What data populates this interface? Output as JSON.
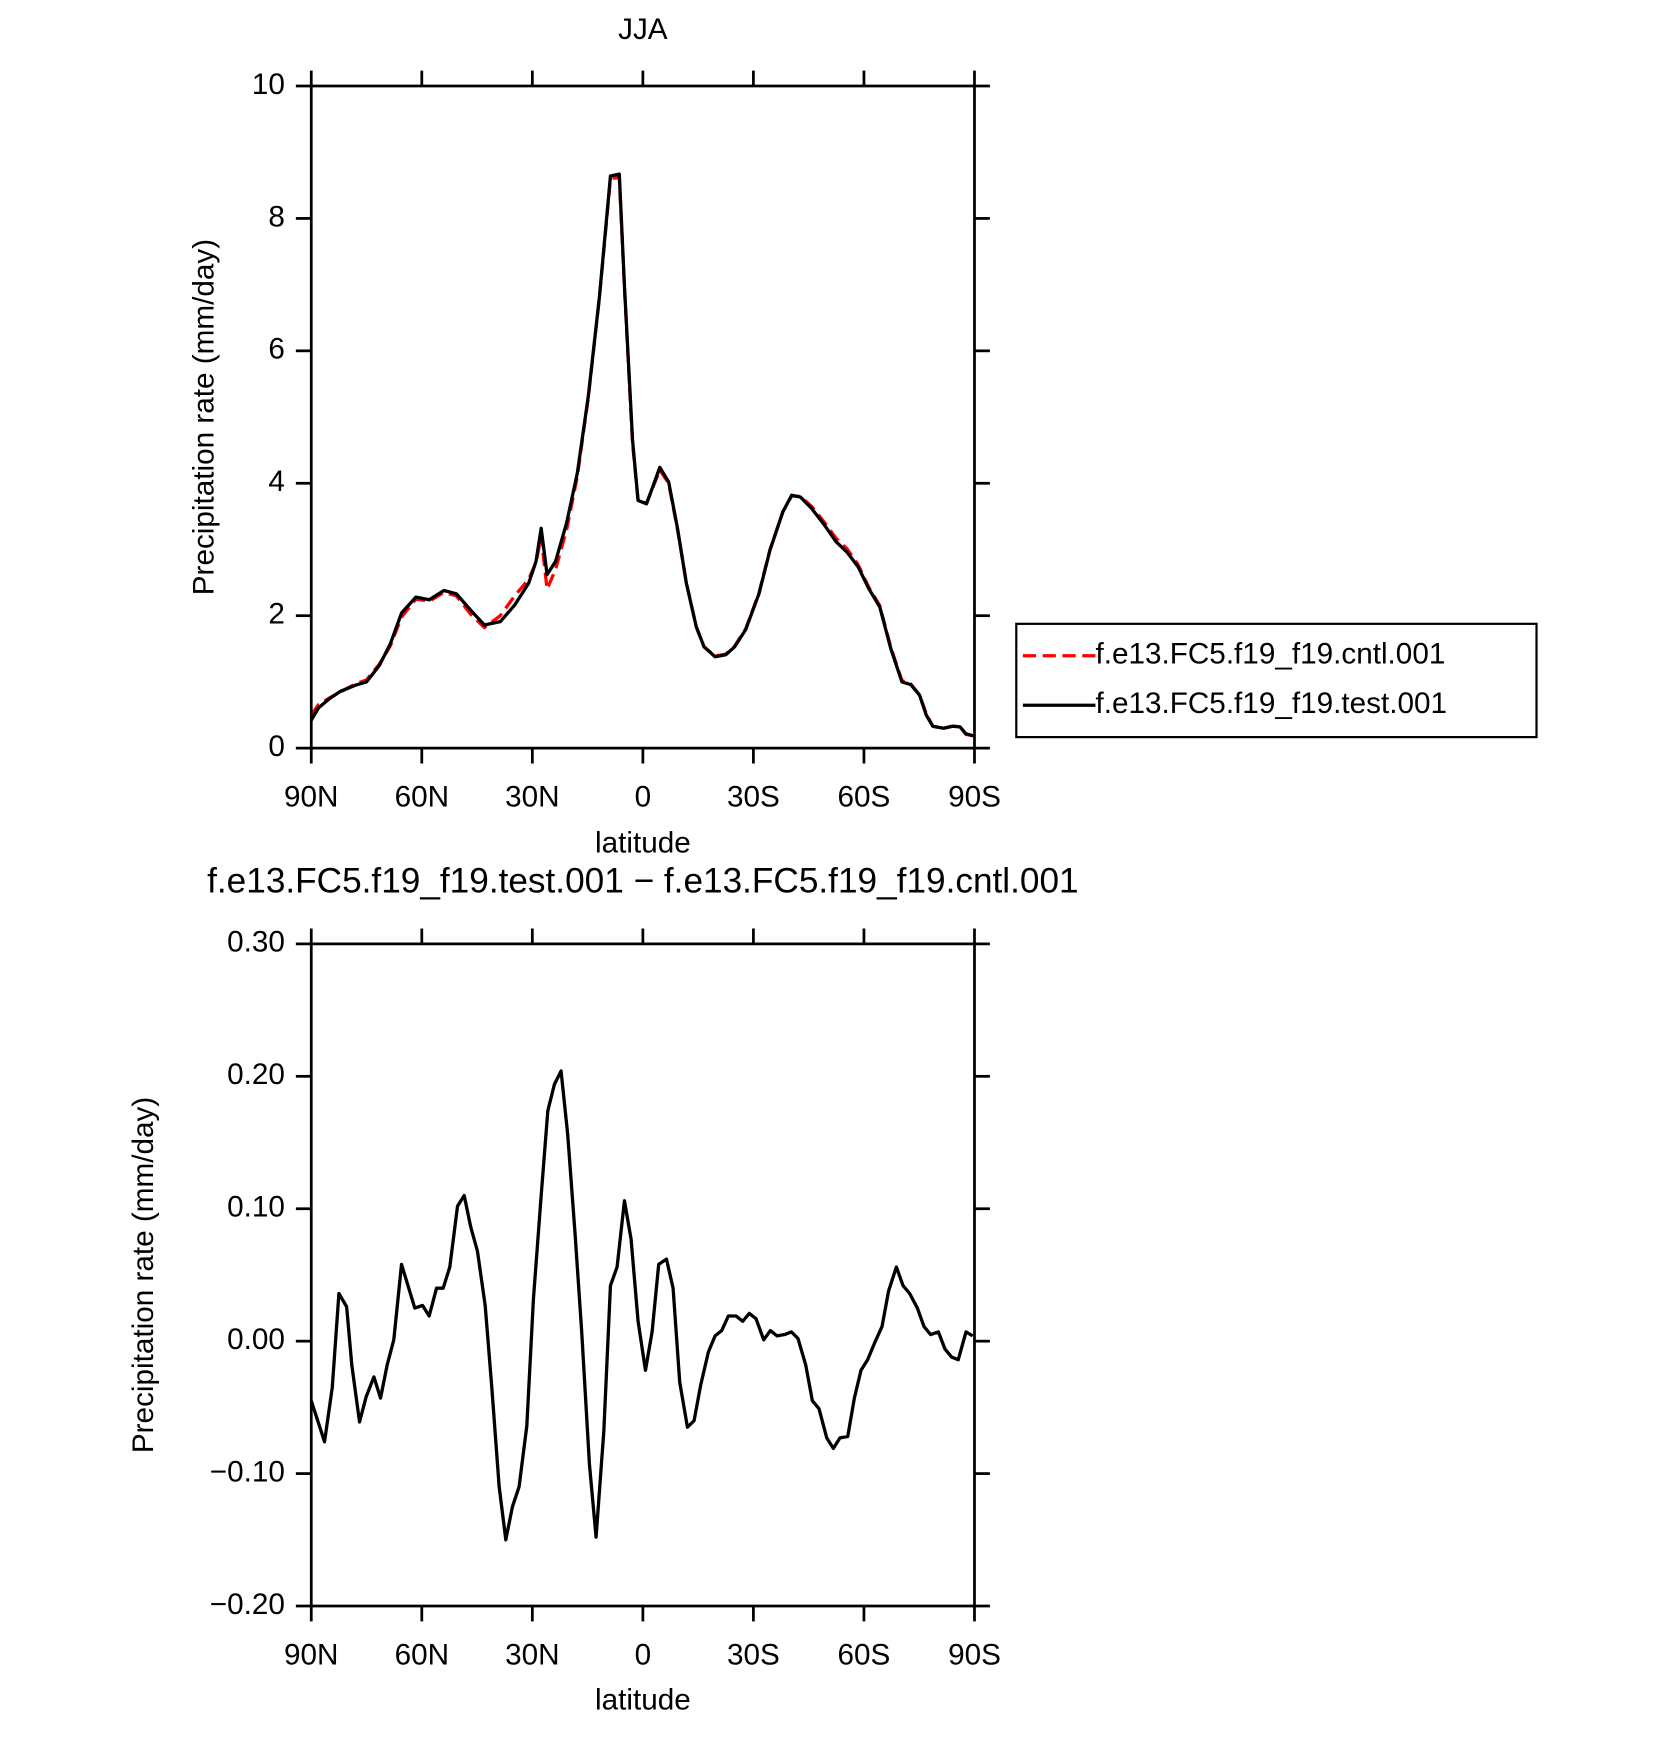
{
  "chart_data": [
    {
      "type": "line",
      "title": "JJA",
      "xlabel": "latitude",
      "ylabel": "Precipitation rate (mm/day)",
      "x": [
        90,
        88,
        85,
        82,
        78,
        75,
        71.5,
        68.5,
        65.5,
        61.6,
        58,
        54,
        50.6,
        46.7,
        43,
        38.7,
        34.8,
        31,
        29,
        27.6,
        26,
        23.7,
        20.7,
        17.8,
        14.8,
        11.8,
        8.8,
        6.4,
        5,
        2.8,
        1.3,
        -1,
        -4.6,
        -7,
        -9.4,
        -11.8,
        -14.5,
        -16.6,
        -19.6,
        -22.5,
        -24.9,
        -27.9,
        -31.5,
        -34.5,
        -38,
        -40.4,
        -42.8,
        -45.8,
        -49.4,
        -52.4,
        -55.4,
        -58.4,
        -61.3,
        -64.3,
        -67.3,
        -70.3,
        -72.7,
        -75.1,
        -76.9,
        -78.7,
        -81.6,
        -84,
        -86.1,
        -87.6,
        -90
      ],
      "series": [
        {
          "name": "f.e13.FC5.f19_f19.cntl.001",
          "color": "#ff0000",
          "linestyle": "dashed",
          "values": [
            0.5,
            0.66,
            0.76,
            0.85,
            0.97,
            1.03,
            1.27,
            1.55,
            1.98,
            2.25,
            2.22,
            2.35,
            2.3,
            2.02,
            1.82,
            2.0,
            2.3,
            2.55,
            2.8,
            3.2,
            2.4,
            2.7,
            3.3,
            4.1,
            5.3,
            6.8,
            8.6,
            8.62,
            6.95,
            4.6,
            3.74,
            3.7,
            4.2,
            4.0,
            3.3,
            2.5,
            1.83,
            1.53,
            1.39,
            1.42,
            1.54,
            1.8,
            2.34,
            3.0,
            3.57,
            3.81,
            3.8,
            3.65,
            3.4,
            3.17,
            3.01,
            2.77,
            2.43,
            2.15,
            1.52,
            1.02,
            0.97,
            0.8,
            0.52,
            0.33,
            0.3,
            0.33,
            0.33,
            0.21,
            0.18
          ]
        },
        {
          "name": "f.e13.FC5.f19_f19.test.001",
          "color": "#000000",
          "linestyle": "solid",
          "values": [
            0.42,
            0.61,
            0.75,
            0.86,
            0.95,
            1.0,
            1.25,
            1.58,
            2.04,
            2.28,
            2.24,
            2.38,
            2.33,
            2.08,
            1.86,
            1.91,
            2.16,
            2.49,
            2.82,
            3.32,
            2.62,
            2.82,
            3.4,
            4.15,
            5.32,
            6.81,
            8.64,
            8.67,
            6.98,
            4.65,
            3.74,
            3.69,
            4.24,
            4.02,
            3.32,
            2.49,
            1.83,
            1.53,
            1.38,
            1.41,
            1.53,
            1.79,
            2.33,
            2.99,
            3.57,
            3.82,
            3.79,
            3.62,
            3.36,
            3.12,
            2.96,
            2.74,
            2.41,
            2.13,
            1.5,
            1.0,
            0.96,
            0.8,
            0.5,
            0.33,
            0.3,
            0.33,
            0.32,
            0.22,
            0.18
          ]
        }
      ],
      "xlim": [
        90,
        -90
      ],
      "xticks": [
        {
          "value": 90,
          "label": "90N"
        },
        {
          "value": 60,
          "label": "60N"
        },
        {
          "value": 30,
          "label": "30N"
        },
        0,
        {
          "value": -30,
          "label": "30S"
        },
        {
          "value": -60,
          "label": "60S"
        },
        {
          "value": -90,
          "label": "90S"
        }
      ],
      "ylim": [
        0,
        10
      ],
      "yticks": [
        0,
        2,
        4,
        6,
        8,
        10
      ],
      "legend": "right"
    },
    {
      "type": "line",
      "title": "f.e13.FC5.f19_f19.test.001 − f.e13.FC5.f19_f19.cntl.001",
      "xlabel": "latitude",
      "ylabel": "Precipitation rate (mm/day)",
      "x": [
        90,
        86.4,
        84.3,
        82.5,
        80.4,
        79,
        76.9,
        75.1,
        73,
        71.2,
        69.4,
        67.6,
        65.5,
        61.9,
        59.8,
        58,
        56,
        54.2,
        52.4,
        50.3,
        48.5,
        46.7,
        44.9,
        42.8,
        41,
        39,
        37.2,
        35.4,
        33.6,
        31.5,
        29.7,
        27.6,
        25.8,
        24,
        22.2,
        20.4,
        18.4,
        16.6,
        14.5,
        12.7,
        10.6,
        8.8,
        7,
        5,
        3.2,
        1.3,
        -0.7,
        -2.5,
        -4.3,
        -6.4,
        -8.2,
        -10,
        -12.1,
        -13.9,
        -15.7,
        -17.8,
        -19.6,
        -21.4,
        -23.2,
        -25.3,
        -27.1,
        -28.9,
        -30.7,
        -32.8,
        -34.6,
        -36.4,
        -38.5,
        -40.3,
        -42.1,
        -44.2,
        -46,
        -47.8,
        -49.9,
        -51.7,
        -53.5,
        -55.6,
        -57.4,
        -59.2,
        -61,
        -63.1,
        -64.9,
        -66.7,
        -68.8,
        -70.6,
        -72.4,
        -74.5,
        -76.3,
        -78.1,
        -80.2,
        -82,
        -83.8,
        -85.6,
        -87.7,
        -89.5
      ],
      "series": [
        {
          "color": "#000000",
          "linestyle": "solid",
          "values": [
            -0.045,
            -0.076,
            -0.035,
            0.036,
            0.026,
            -0.018,
            -0.061,
            -0.042,
            -0.027,
            -0.043,
            -0.018,
            0.001,
            0.058,
            0.025,
            0.027,
            0.019,
            0.04,
            0.04,
            0.056,
            0.102,
            0.11,
            0.086,
            0.068,
            0.027,
            -0.035,
            -0.11,
            -0.15,
            -0.125,
            -0.11,
            -0.064,
            0.032,
            0.11,
            0.174,
            0.194,
            0.204,
            0.156,
            0.081,
            0.007,
            -0.093,
            -0.148,
            -0.068,
            0.042,
            0.056,
            0.106,
            0.077,
            0.015,
            -0.022,
            0.007,
            0.058,
            0.062,
            0.04,
            -0.031,
            -0.065,
            -0.06,
            -0.033,
            -0.008,
            0.004,
            0.008,
            0.019,
            0.019,
            0.015,
            0.021,
            0.017,
            0.001,
            0.008,
            0.004,
            0.005,
            0.007,
            0.002,
            -0.018,
            -0.045,
            -0.051,
            -0.073,
            -0.081,
            -0.073,
            -0.072,
            -0.043,
            -0.022,
            -0.014,
            0,
            0.011,
            0.038,
            0.056,
            0.042,
            0.036,
            0.025,
            0.011,
            0.005,
            0.007,
            -0.006,
            -0.012,
            -0.014,
            0.007,
            0.004
          ]
        }
      ],
      "xlim": [
        90,
        -90
      ],
      "xticks": [
        {
          "value": 90,
          "label": "90N"
        },
        {
          "value": 60,
          "label": "60N"
        },
        {
          "value": 30,
          "label": "30N"
        },
        0,
        {
          "value": -30,
          "label": "30S"
        },
        {
          "value": -60,
          "label": "60S"
        },
        {
          "value": -90,
          "label": "90S"
        }
      ],
      "ylim": [
        -0.2,
        0.3
      ],
      "yticks": [
        {
          "value": -0.2,
          "label": "−0.20"
        },
        {
          "value": -0.1,
          "label": "−0.10"
        },
        {
          "value": 0,
          "label": "0.00"
        },
        {
          "value": 0.1,
          "label": "0.10"
        },
        {
          "value": 0.2,
          "label": "0.20"
        },
        {
          "value": 0.3,
          "label": "0.30"
        }
      ]
    }
  ]
}
